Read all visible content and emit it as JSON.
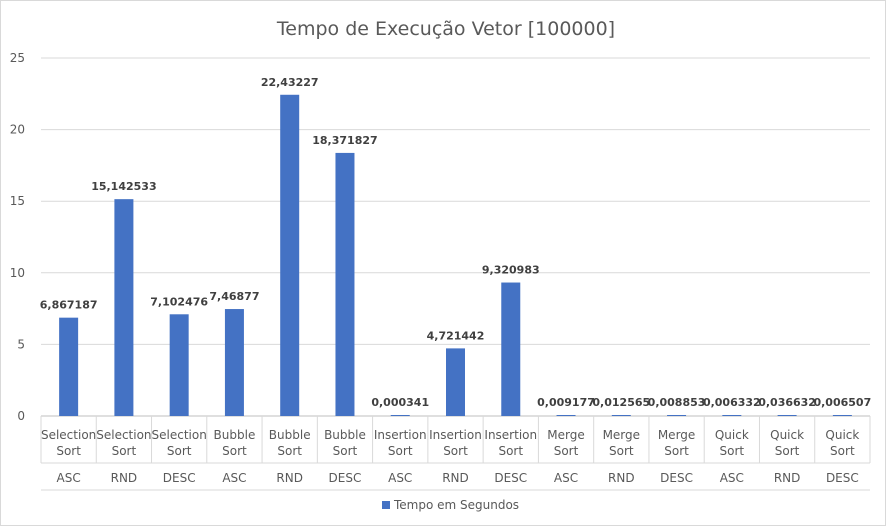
{
  "chart_data": {
    "type": "bar",
    "title": "Tempo de Execução Vetor [100000]",
    "categories": [
      {
        "algo": [
          "Selection",
          "Sort"
        ],
        "order": "ASC"
      },
      {
        "algo": [
          "Selection",
          "Sort"
        ],
        "order": "RND"
      },
      {
        "algo": [
          "Selection",
          "Sort"
        ],
        "order": "DESC"
      },
      {
        "algo": [
          "Bubble",
          "Sort"
        ],
        "order": "ASC"
      },
      {
        "algo": [
          "Bubble",
          "Sort"
        ],
        "order": "RND"
      },
      {
        "algo": [
          "Bubble",
          "Sort"
        ],
        "order": "DESC"
      },
      {
        "algo": [
          "Insertion",
          "Sort"
        ],
        "order": "ASC"
      },
      {
        "algo": [
          "Insertion",
          "Sort"
        ],
        "order": "RND"
      },
      {
        "algo": [
          "Insertion",
          "Sort"
        ],
        "order": "DESC"
      },
      {
        "algo": [
          "Merge",
          "Sort"
        ],
        "order": "ASC"
      },
      {
        "algo": [
          "Merge",
          "Sort"
        ],
        "order": "RND"
      },
      {
        "algo": [
          "Merge",
          "Sort"
        ],
        "order": "DESC"
      },
      {
        "algo": [
          "Quick",
          "Sort"
        ],
        "order": "ASC"
      },
      {
        "algo": [
          "Quick",
          "Sort"
        ],
        "order": "RND"
      },
      {
        "algo": [
          "Quick",
          "Sort"
        ],
        "order": "DESC"
      }
    ],
    "series": [
      {
        "name": "Tempo em Segundos",
        "color": "#4472c4",
        "values": [
          6.867187,
          15.142533,
          7.102476,
          7.46877,
          22.43227,
          18.371827,
          0.000341,
          4.721442,
          9.320983,
          0.009177,
          0.012565,
          0.008853,
          0.006332,
          0.036632,
          0.006507
        ],
        "labels": [
          "6,867187",
          "15,142533",
          "7,102476",
          "7,46877",
          "22,43227",
          "18,371827",
          "0,000341",
          "4,721442",
          "9,320983",
          "0,009177",
          "0,012565",
          "0,008853",
          "0,006332",
          "0,036632",
          "0,006507"
        ]
      }
    ],
    "ylim": [
      0,
      25
    ],
    "yticks": [
      0,
      5,
      10,
      15,
      20,
      25
    ],
    "grid": true,
    "legend": "bottom"
  }
}
